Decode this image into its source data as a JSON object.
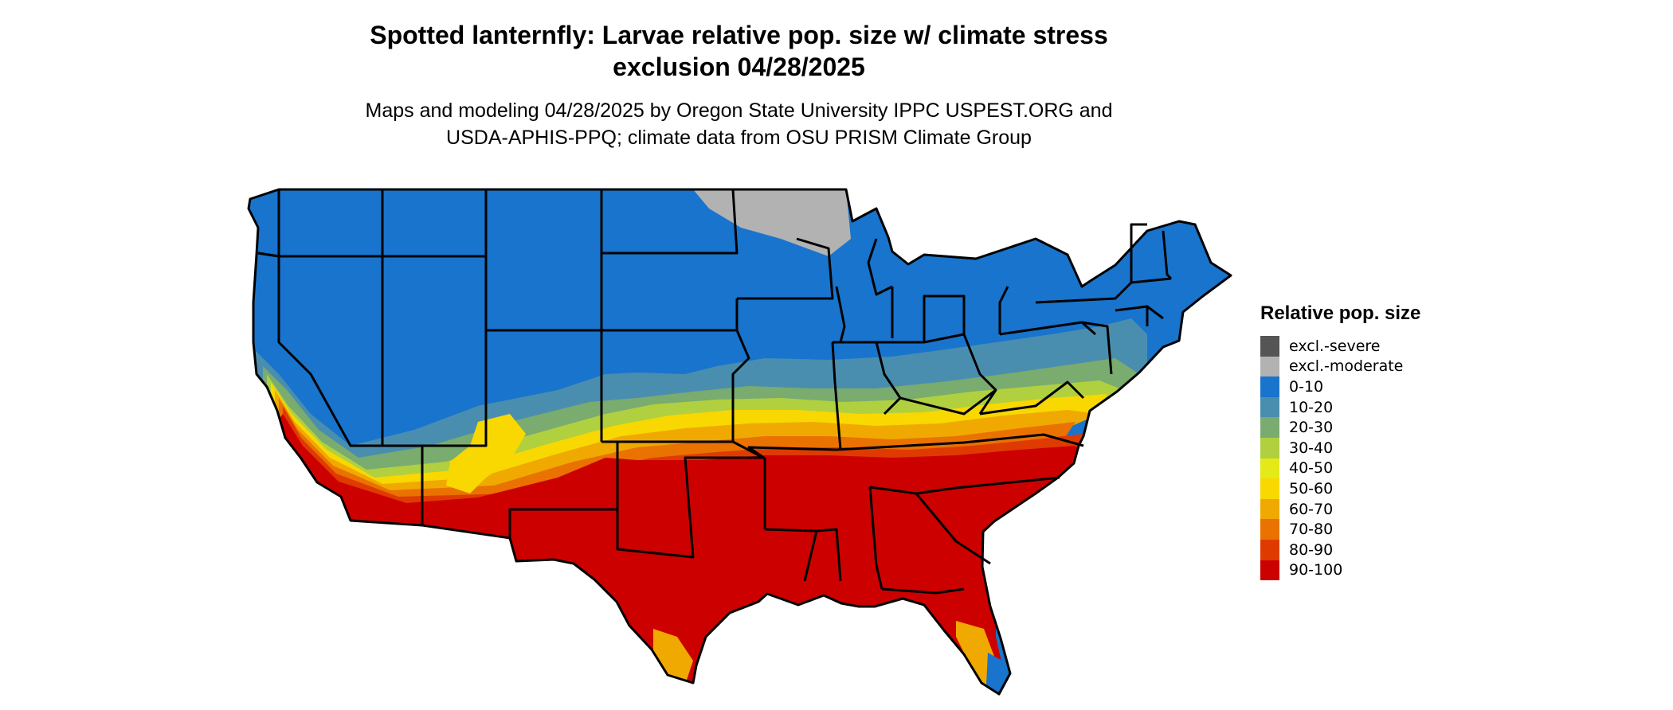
{
  "title": {
    "line1": "Spotted lanternfly: Larvae relative pop. size w/ climate stress",
    "line2": "exclusion 04/28/2025"
  },
  "subtitle": {
    "line1": "Maps and modeling 04/28/2025 by Oregon State University IPPC USPEST.ORG and",
    "line2": "USDA-APHIS-PPQ; climate data from OSU PRISM Climate Group"
  },
  "legend": {
    "title": "Relative pop. size",
    "items": [
      {
        "label": "excl.-severe",
        "color": "#555555"
      },
      {
        "label": "excl.-moderate",
        "color": "#b2b2b2"
      },
      {
        "label": "0-10",
        "color": "#1874cd"
      },
      {
        "label": "10-20",
        "color": "#4a8eaf"
      },
      {
        "label": "20-30",
        "color": "#7aab6f"
      },
      {
        "label": "30-40",
        "color": "#b0d03f"
      },
      {
        "label": "40-50",
        "color": "#e3ea18"
      },
      {
        "label": "50-60",
        "color": "#f8d800"
      },
      {
        "label": "60-70",
        "color": "#f0a900"
      },
      {
        "label": "70-80",
        "color": "#ea7200"
      },
      {
        "label": "80-90",
        "color": "#df3b00"
      },
      {
        "label": "90-100",
        "color": "#cd0000"
      }
    ]
  },
  "map": {
    "region": "conterminous United States",
    "outline_color": "#000000"
  }
}
